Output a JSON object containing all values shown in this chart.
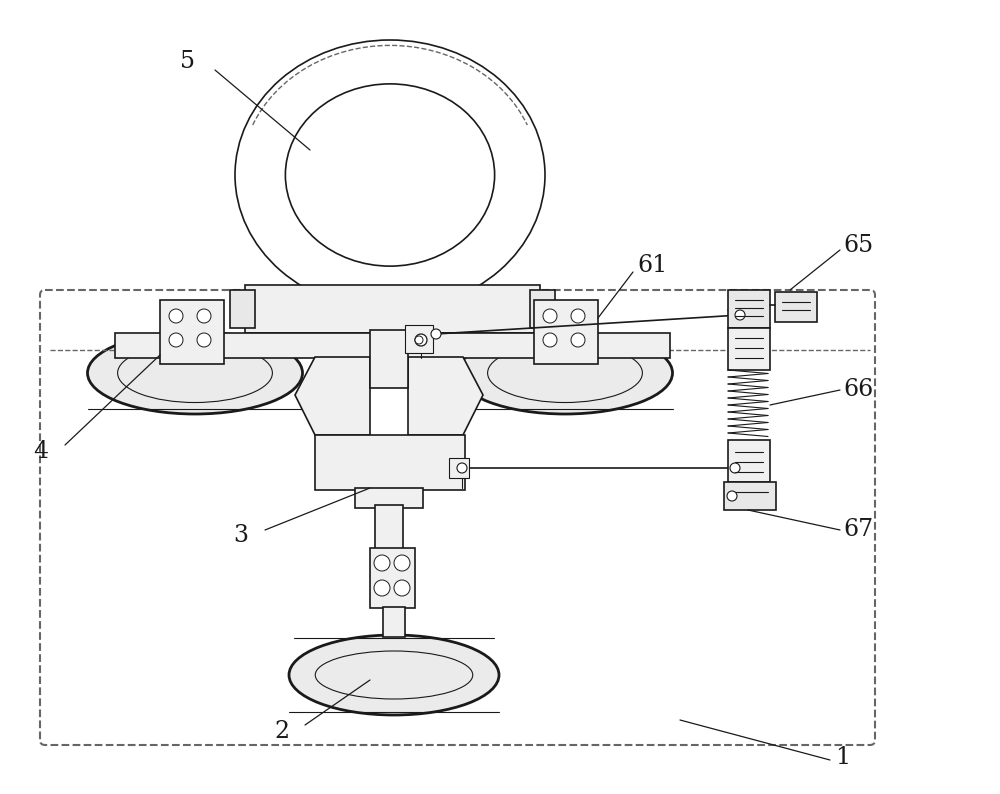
{
  "bg_color": "#ffffff",
  "line_color": "#1a1a1a",
  "dashed_color": "#666666",
  "label_color": "#1a1a1a",
  "fig_w": 10.0,
  "fig_h": 7.94,
  "dpi": 100
}
